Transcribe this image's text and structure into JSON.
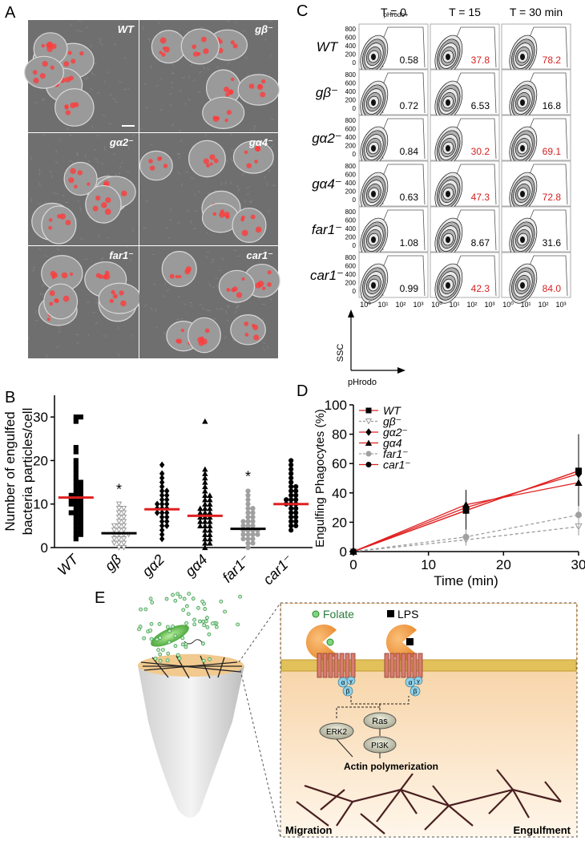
{
  "panel_a": {
    "letter": "A",
    "labels": [
      "WT",
      "gβ⁻",
      "gα2⁻",
      "gα4⁻",
      "far1⁻",
      "car1⁻"
    ]
  },
  "panel_b": {
    "letter": "B"
  },
  "panel_c": {
    "letter": "C",
    "header": [
      "T = 0",
      "T = 15",
      "T = 30 min"
    ],
    "gate_label": "pHrodo+",
    "y_ticks": [
      "0",
      "200",
      "400",
      "600",
      "800"
    ],
    "x_ticks": [
      "10⁰",
      "10¹",
      "10²",
      "10³"
    ],
    "y_axis_label": "SSC",
    "x_axis_label": "pHrodo",
    "highlight_color": "#d42020",
    "rows": [
      {
        "label": "WT",
        "values": [
          "0.58",
          "37.8",
          "78.2"
        ],
        "highlight": true
      },
      {
        "label": "gβ⁻",
        "values": [
          "0.72",
          "6.53",
          "16.8"
        ],
        "highlight": false
      },
      {
        "label": "gα2⁻",
        "values": [
          "0.84",
          "30.2",
          "69.1"
        ],
        "highlight": true
      },
      {
        "label": "gα4⁻",
        "values": [
          "0.63",
          "47.3",
          "72.8"
        ],
        "highlight": true
      },
      {
        "label": "far1⁻",
        "values": [
          "1.08",
          "8.67",
          "31.6"
        ],
        "highlight": false
      },
      {
        "label": "car1⁻",
        "values": [
          "0.99",
          "42.3",
          "84.0"
        ],
        "highlight": true
      }
    ]
  },
  "panel_d": {
    "letter": "D"
  },
  "panel_e": {
    "letter": "E",
    "folate": "Folate",
    "lps": "LPS",
    "ras": "Ras",
    "erk2": "ERK2",
    "pi3k": "PI3K",
    "actin": "Actin polymerization",
    "migration": "Migration",
    "engulfment": "Engulfment",
    "alpha": "α",
    "gamma": "γ",
    "beta": "β"
  },
  "chart_data": [
    {
      "type": "strip",
      "y_label": [
        "Number of engulfed",
        "bacteria particles/cell"
      ],
      "categories": [
        "WT",
        "gβ",
        "gα2",
        "gα4",
        "far1⁻",
        "car1⁻"
      ],
      "ylim": [
        0,
        35
      ],
      "yticks": [
        0,
        10,
        20,
        30
      ],
      "annotations": [
        {
          "text": "*",
          "category": 1
        },
        {
          "text": "*",
          "category": 4
        }
      ],
      "groups": [
        {
          "marker": "square",
          "color": "#000000",
          "mean_color": "#e02020",
          "mean": 11.5,
          "values": [
            30,
            30,
            29,
            23,
            22,
            20,
            19,
            18,
            17,
            16,
            15,
            15,
            14,
            14,
            13,
            13,
            12,
            12,
            12,
            11,
            11,
            11,
            10,
            10,
            10,
            9,
            9,
            8,
            8,
            8,
            7,
            7,
            6,
            6,
            5,
            5,
            4,
            4,
            3,
            3,
            2
          ]
        },
        {
          "marker": "triangle-down-open",
          "color": "#9a9a9a",
          "mean_color": "#000000",
          "mean": 3.3,
          "values": [
            10,
            9,
            9,
            8,
            8,
            7,
            7,
            6,
            6,
            5,
            5,
            5,
            4,
            4,
            4,
            3,
            3,
            3,
            3,
            2,
            2,
            2,
            1,
            1,
            1,
            0,
            0
          ]
        },
        {
          "marker": "diamond",
          "color": "#000000",
          "mean_color": "#e02020",
          "mean": 8.8,
          "values": [
            19,
            17,
            16,
            15,
            14,
            13,
            13,
            12,
            12,
            11,
            11,
            10,
            10,
            10,
            9,
            9,
            9,
            8,
            8,
            8,
            7,
            7,
            6,
            6,
            5,
            5,
            4,
            3,
            2
          ]
        },
        {
          "marker": "triangle",
          "color": "#000000",
          "mean_color": "#e02020",
          "mean": 7.3,
          "values": [
            29,
            18,
            17,
            16,
            15,
            14,
            13,
            12,
            12,
            11,
            11,
            10,
            10,
            9,
            9,
            9,
            8,
            8,
            8,
            7,
            7,
            7,
            6,
            6,
            6,
            5,
            5,
            5,
            4,
            4,
            3,
            3,
            2,
            2,
            1,
            1,
            0
          ]
        },
        {
          "marker": "circle",
          "color": "#a0a0a0",
          "mean_color": "#000000",
          "mean": 4.3,
          "values": [
            13,
            12,
            11,
            10,
            9,
            9,
            8,
            8,
            7,
            7,
            6,
            6,
            6,
            5,
            5,
            5,
            4,
            4,
            4,
            4,
            3,
            3,
            3,
            3,
            2,
            2,
            2,
            1,
            1,
            0
          ]
        },
        {
          "marker": "circle",
          "color": "#000000",
          "mean_color": "#e02020",
          "mean": 10,
          "values": [
            20,
            19,
            18,
            17,
            16,
            15,
            14,
            14,
            13,
            13,
            12,
            12,
            11,
            11,
            11,
            10,
            10,
            10,
            9,
            9,
            8,
            8,
            7,
            7,
            6,
            6,
            5,
            5,
            4
          ]
        }
      ]
    },
    {
      "type": "line",
      "x_label": "Time (min)",
      "y_label": "Engulfing Phagocytes (%)",
      "x": [
        0,
        15,
        30
      ],
      "xlim": [
        0,
        30
      ],
      "xticks": [
        0,
        10,
        20,
        30
      ],
      "ylim": [
        0,
        100
      ],
      "yticks": [
        0,
        20,
        40,
        60,
        80,
        100
      ],
      "series": [
        {
          "name": "WT",
          "color": "#e02020",
          "marker_color": "#000000",
          "marker": "square",
          "dashed": false,
          "values": [
            0,
            28,
            55
          ],
          "errors": [
            0,
            14,
            25
          ]
        },
        {
          "name": "gβ⁻",
          "color": "#9a9a9a",
          "marker_color": "#9a9a9a",
          "marker": "triangle-down-open",
          "dashed": true,
          "values": [
            0,
            8,
            17
          ],
          "errors": [
            0,
            4,
            6
          ]
        },
        {
          "name": "gα2⁻",
          "color": "#e02020",
          "marker_color": "#000000",
          "marker": "diamond",
          "dashed": false,
          "values": [
            0,
            30,
            53
          ],
          "errors": [
            0,
            12,
            22
          ]
        },
        {
          "name": "gα4",
          "color": "#e02020",
          "marker_color": "#000000",
          "marker": "triangle",
          "dashed": false,
          "values": [
            0,
            32,
            47
          ],
          "errors": [
            0,
            10,
            18
          ]
        },
        {
          "name": "far1⁻",
          "color": "#a0a0a0",
          "marker_color": "#a0a0a0",
          "marker": "circle",
          "dashed": true,
          "values": [
            0,
            10,
            25
          ],
          "errors": [
            0,
            5,
            9
          ]
        },
        {
          "name": "car1⁻",
          "color": "#e02020",
          "marker_color": "#000000",
          "marker": "circle",
          "dashed": false,
          "values": [
            0,
            28,
            55
          ],
          "errors": [
            0,
            13,
            24
          ]
        }
      ]
    }
  ]
}
